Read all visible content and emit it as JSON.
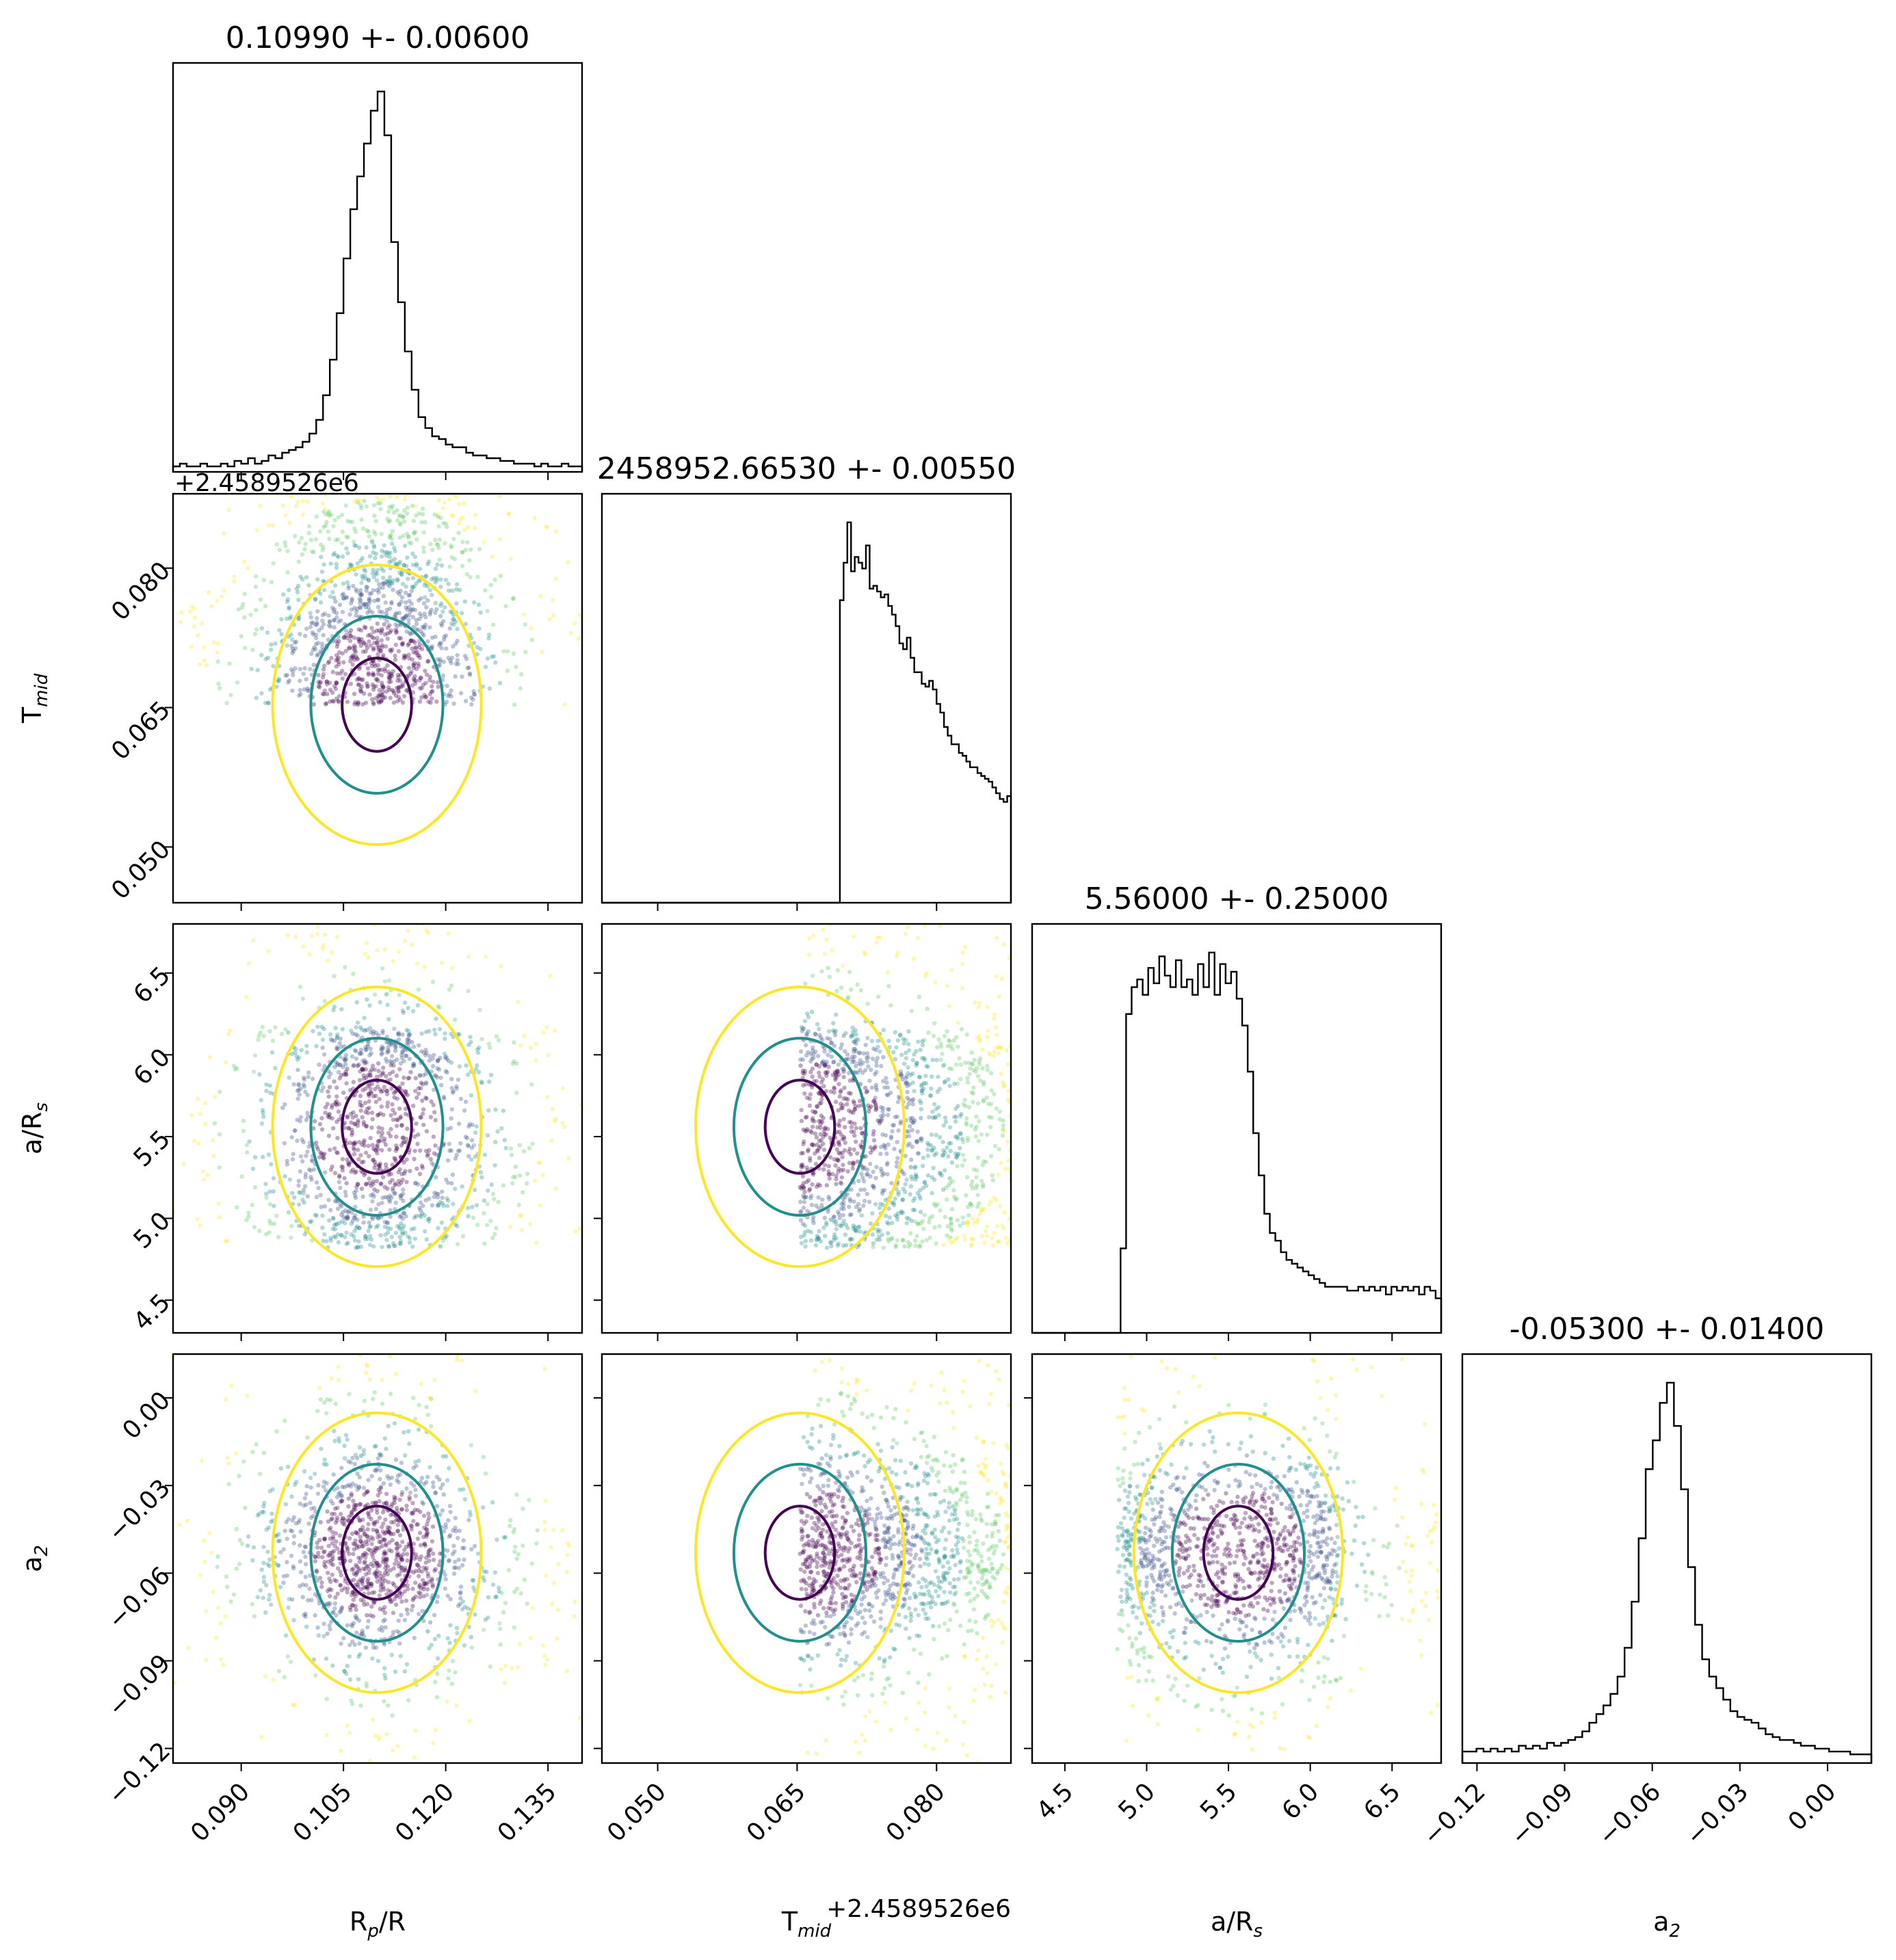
{
  "chart_data": {
    "type": "scatter",
    "parameters": [
      {
        "key": "rp",
        "label": "R_p/R_s",
        "title": "0.10990 +- 0.00600",
        "center": 0.1099,
        "sigma": 0.006,
        "range": [
          0.08,
          0.14
        ],
        "ticks": [
          "0.090",
          "0.105",
          "0.120",
          "0.135"
        ]
      },
      {
        "key": "tmid",
        "label": "T_mid",
        "title": "2458952.66530 +- 0.00550",
        "center": 0.0653,
        "sigma": 0.0055,
        "range": [
          0.044,
          0.088
        ],
        "ticks": [
          "0.050",
          "0.065",
          "0.080"
        ],
        "offset_text": "+2.4589526e6"
      },
      {
        "key": "ars",
        "label": "a/R_s",
        "title": "5.56000 +- 0.25000",
        "center": 5.56,
        "sigma": 0.25,
        "range": [
          4.3,
          6.8
        ],
        "ticks": [
          "4.5",
          "5.0",
          "5.5",
          "6.0",
          "6.5"
        ]
      },
      {
        "key": "a2",
        "label": "a_2",
        "title": "-0.05300 +- 0.01400",
        "center": -0.053,
        "sigma": 0.014,
        "range": [
          -0.125,
          0.015
        ],
        "ticks": [
          "−0.12",
          "−0.09",
          "−0.06",
          "−0.03",
          "0.00"
        ]
      }
    ],
    "histograms": {
      "rp": [
        2,
        3,
        2,
        2,
        3,
        2,
        2,
        3,
        2,
        4,
        3,
        5,
        3,
        4,
        6,
        5,
        7,
        8,
        9,
        11,
        14,
        19,
        28,
        41,
        58,
        78,
        96,
        108,
        120,
        132,
        139,
        123,
        84,
        62,
        44,
        30,
        20,
        16,
        13,
        12,
        10,
        9,
        9,
        7,
        6,
        6,
        5,
        5,
        4,
        4,
        3,
        3,
        3,
        2,
        3,
        2,
        2,
        3,
        2,
        2
      ],
      "tmid": [
        0,
        0,
        0,
        0,
        0,
        0,
        0,
        0,
        0,
        0,
        0,
        0,
        0,
        0,
        0,
        0,
        0,
        0,
        0,
        0,
        0,
        0,
        0,
        0,
        0,
        0,
        0,
        0,
        0,
        0,
        0,
        0,
        0,
        0,
        0,
        0,
        0,
        0,
        0,
        0,
        0,
        0,
        0,
        0,
        0,
        0,
        0,
        0,
        0,
        0,
        0,
        0,
        0,
        0,
        0,
        0,
        0,
        0,
        0,
        0,
        0,
        0,
        0,
        0,
        105,
        118,
        132,
        115,
        120,
        118,
        116,
        124,
        109,
        110,
        108,
        106,
        107,
        103,
        100,
        96,
        90,
        88,
        92,
        85,
        80,
        80,
        76,
        75,
        77,
        74,
        69,
        66,
        61,
        58,
        55,
        55,
        52,
        51,
        49,
        47,
        47,
        45,
        44,
        43,
        42,
        40,
        38,
        36,
        35,
        37
      ],
      "ars": [
        0,
        0,
        0,
        0,
        0,
        0,
        0,
        0,
        0,
        0,
        0,
        0,
        0,
        0,
        0,
        0,
        22,
        83,
        90,
        92,
        88,
        95,
        91,
        98,
        93,
        90,
        97,
        90,
        92,
        88,
        96,
        90,
        99,
        88,
        96,
        91,
        94,
        87,
        80,
        68,
        52,
        41,
        31,
        26,
        24,
        21,
        19,
        18,
        17,
        16,
        15,
        14,
        13,
        12,
        12,
        12,
        12,
        11,
        11,
        12,
        11,
        12,
        11,
        12,
        10,
        12,
        11,
        12,
        11,
        12,
        10,
        12,
        11,
        9
      ],
      "a2": [
        4,
        4,
        5,
        4,
        5,
        4,
        5,
        4,
        6,
        5,
        6,
        5,
        7,
        6,
        7,
        8,
        9,
        11,
        14,
        17,
        20,
        24,
        30,
        40,
        56,
        78,
        102,
        112,
        125,
        132,
        117,
        95,
        68,
        48,
        36,
        30,
        26,
        22,
        18,
        16,
        15,
        14,
        12,
        10,
        9,
        8,
        8,
        7,
        6,
        6,
        5,
        5,
        4,
        4,
        4,
        3,
        3,
        3
      ]
    },
    "contour_colors": [
      "#440154",
      "#21908d",
      "#fde725"
    ],
    "point_colors": [
      "#440154",
      "#3b528b",
      "#21908d",
      "#5ec962",
      "#fde725"
    ]
  }
}
